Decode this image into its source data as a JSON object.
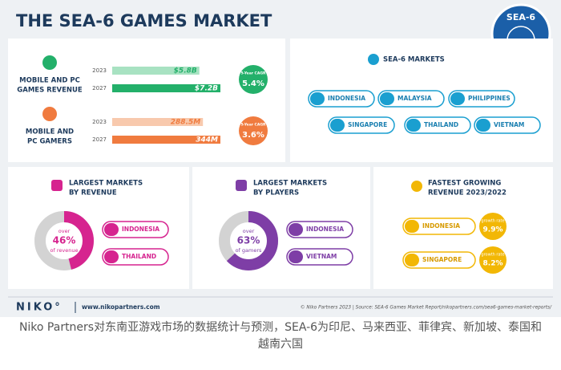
{
  "header": {
    "title": "THE SEA-6 GAMES MARKET",
    "badge": "SEA-6"
  },
  "revenue": {
    "label_lines": [
      "MOBILE AND PC",
      "GAMES REVENUE"
    ],
    "bars": [
      {
        "year": "2023",
        "value": 5.8,
        "label": "$5.8B"
      },
      {
        "year": "2027",
        "value": 7.2,
        "label": "$7.2B"
      }
    ],
    "cagr_label": "5-Year CAGR",
    "cagr": "5.4%"
  },
  "gamers": {
    "label_lines": [
      "MOBILE AND",
      "PC GAMERS"
    ],
    "bars": [
      {
        "year": "2023",
        "value": 288.5,
        "label": "288.5M"
      },
      {
        "year": "2027",
        "value": 344,
        "label": "344M"
      }
    ],
    "cagr_label": "5-Year CAGR",
    "cagr": "3.6%"
  },
  "markets": {
    "title": "SEA-6 MARKETS",
    "items": [
      "INDONESIA",
      "MALAYSIA",
      "PHILIPPINES",
      "SINGAPORE",
      "THAILAND",
      "VIETNAM"
    ]
  },
  "by_revenue": {
    "title_lines": [
      "LARGEST MARKETS",
      "BY REVENUE"
    ],
    "donut": {
      "prefix": "over",
      "value": 46,
      "value_label": "46%",
      "caption": "of revenue"
    },
    "items": [
      "INDONESIA",
      "THAILAND"
    ]
  },
  "by_players": {
    "title_lines": [
      "LARGEST MARKETS",
      "BY PLAYERS"
    ],
    "donut": {
      "prefix": "over",
      "value": 63,
      "value_label": "63%",
      "caption": "of gamers"
    },
    "items": [
      "INDONESIA",
      "VIETNAM"
    ]
  },
  "fastest": {
    "title_lines": [
      "FASTEST GROWING",
      "REVENUE 2023/2022"
    ],
    "items": [
      {
        "market": "INDONESIA",
        "rate_label": "growth rate",
        "rate": "9.9%"
      },
      {
        "market": "SINGAPORE",
        "rate_label": "growth rate",
        "rate": "8.2%"
      }
    ]
  },
  "footer": {
    "logo": "NIKO°",
    "url": "www.nikopartners.com",
    "source": "© Niko Partners 2023 | Source: SEA-6 Games Market Report/nikopartners.com/sea6-games-market-reports/"
  },
  "caption": "Niko Partners对东南亚游戏市场的数据统计与预测，SEA-6为印尼、马来西亚、菲律宾、新加坡、泰国和越南六国"
}
